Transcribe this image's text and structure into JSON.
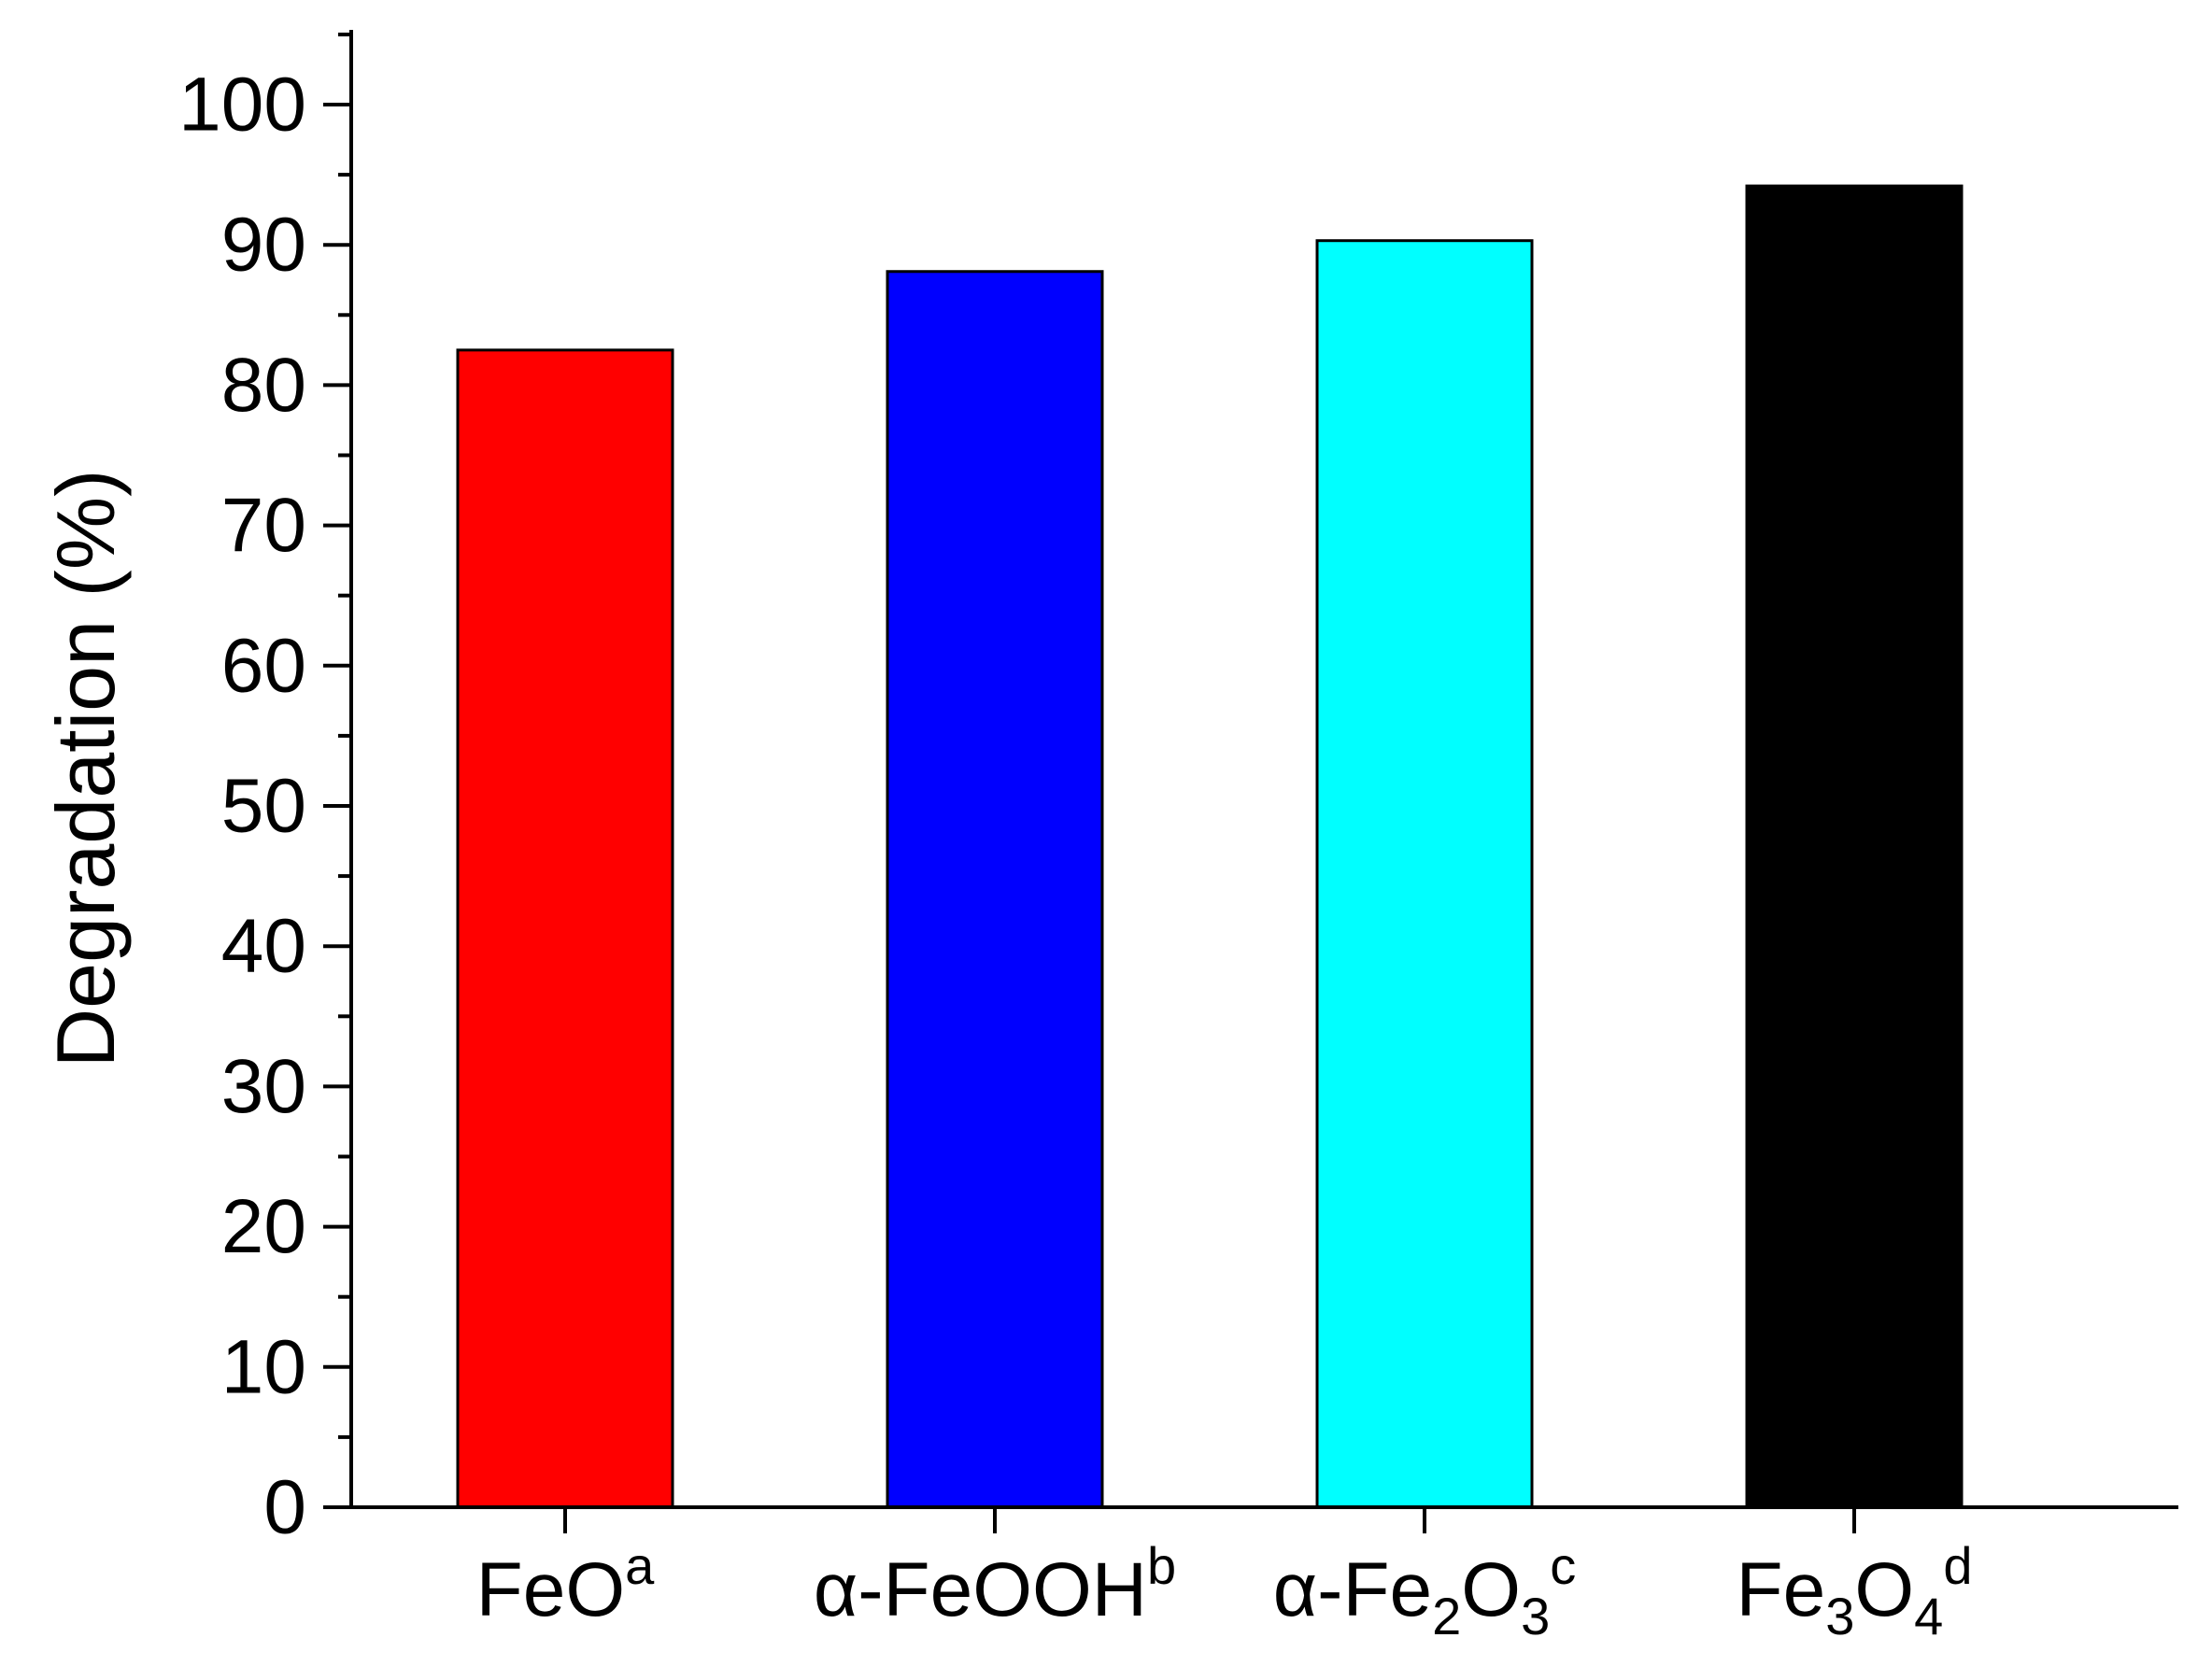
{
  "chart_data": {
    "type": "bar",
    "title": "",
    "xlabel": "",
    "ylabel": "Degradation (%)",
    "ylim": [
      0,
      105
    ],
    "yticks": [
      0,
      10,
      20,
      30,
      40,
      50,
      60,
      70,
      80,
      90,
      100
    ],
    "y_minor_step": 5,
    "grid": false,
    "legend": "none",
    "categories": [
      {
        "label": "FeO^a",
        "parts": [
          {
            "t": "FeO",
            "s": "n"
          },
          {
            "t": "a",
            "s": "sup"
          }
        ]
      },
      {
        "label": "α-FeOOH^b",
        "parts": [
          {
            "t": "α-FeOOH",
            "s": "n"
          },
          {
            "t": "b",
            "s": "sup"
          }
        ]
      },
      {
        "label": "α-Fe2O3^c",
        "parts": [
          {
            "t": "α-Fe",
            "s": "n"
          },
          {
            "t": "2",
            "s": "sub"
          },
          {
            "t": "O",
            "s": "n"
          },
          {
            "t": "3",
            "s": "sub"
          },
          {
            "t": "c",
            "s": "sup"
          }
        ]
      },
      {
        "label": "Fe3O4^d",
        "parts": [
          {
            "t": "Fe",
            "s": "n"
          },
          {
            "t": "3",
            "s": "sub"
          },
          {
            "t": "O",
            "s": "n"
          },
          {
            "t": "4",
            "s": "sub"
          },
          {
            "t": "d",
            "s": "sup"
          }
        ]
      }
    ],
    "values": [
      82.5,
      88.1,
      90.3,
      94.2
    ],
    "colors": [
      "#ff0000",
      "#0000ff",
      "#00ffff",
      "#000000"
    ]
  }
}
